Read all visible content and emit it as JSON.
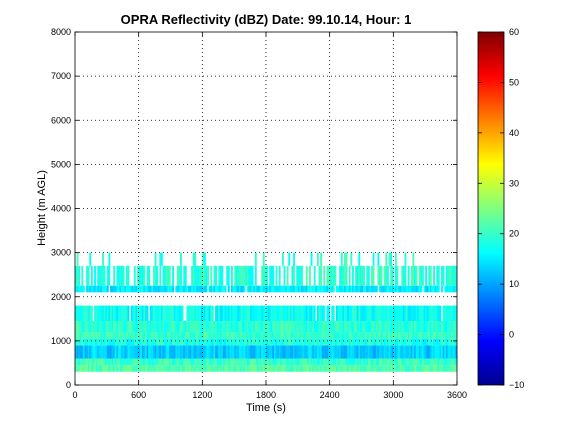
{
  "chart_data": [
    {
      "type": "heatmap",
      "title": "OPRA Reflectivity (dBZ)  Date: 99.10.14, Hour: 1",
      "xlabel": "Time (s)",
      "ylabel": "Height (m AGL)",
      "xlim": [
        0,
        3600
      ],
      "ylim": [
        0,
        8000
      ],
      "x_ticks": [
        0,
        600,
        1200,
        1800,
        2400,
        3000,
        3600
      ],
      "y_ticks": [
        0,
        1000,
        2000,
        3000,
        4000,
        5000,
        6000,
        7000,
        8000
      ],
      "grid": true,
      "colormap": "jet",
      "layers": [
        {
          "height_range": [
            300,
            450
          ],
          "dbz": 22
        },
        {
          "height_range": [
            450,
            600
          ],
          "dbz": 20
        },
        {
          "height_range": [
            600,
            900
          ],
          "dbz": 13
        },
        {
          "height_range": [
            900,
            1050
          ],
          "dbz": 18
        },
        {
          "height_range": [
            1050,
            1200
          ],
          "dbz": 20
        },
        {
          "height_range": [
            1200,
            1450
          ],
          "dbz": 19
        },
        {
          "height_range": [
            1450,
            1800
          ],
          "dbz": 17
        },
        {
          "height_range": [
            2100,
            2250
          ],
          "dbz": 15
        },
        {
          "height_range": [
            2250,
            2700
          ],
          "dbz": 19
        },
        {
          "height_range": [
            2700,
            3000
          ],
          "dbz": 19
        }
      ]
    },
    {
      "type": "colorbar",
      "range": [
        -10,
        60
      ],
      "ticks": [
        -10,
        0,
        10,
        20,
        30,
        40,
        50,
        60
      ]
    }
  ]
}
